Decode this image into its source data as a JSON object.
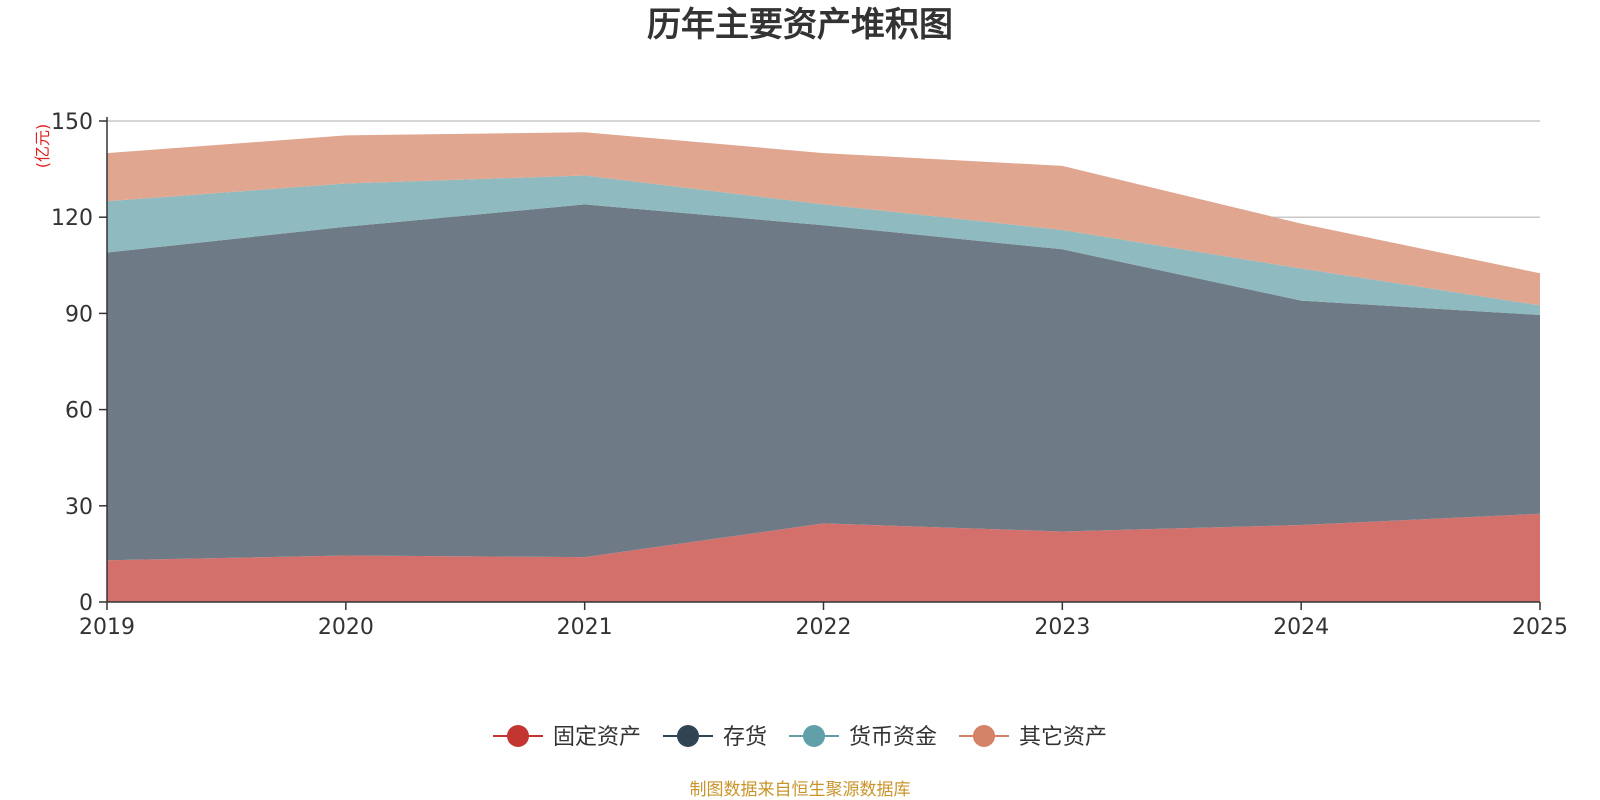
{
  "chart_data": {
    "type": "area",
    "stacked": true,
    "title": "历年主要资产堆积图",
    "ylabel": "(亿元)",
    "xlabel": "",
    "x": [
      "2019",
      "2020",
      "2021",
      "2022",
      "2023",
      "2024",
      "2025"
    ],
    "ylim": [
      0,
      150
    ],
    "yticks": [
      0,
      30,
      60,
      90,
      120,
      150
    ],
    "grid": true,
    "legend_position": "bottom-center",
    "series": [
      {
        "name": "固定资产",
        "color": "#c23531",
        "fill": "#d4706c",
        "values": [
          13,
          14.5,
          14,
          24.5,
          22,
          24,
          27.5
        ]
      },
      {
        "name": "存货",
        "color": "#2f4554",
        "fill": "#6e7b86",
        "values": [
          96,
          102.5,
          110,
          93,
          88,
          70,
          62
        ]
      },
      {
        "name": "货币资金",
        "color": "#61a0a8",
        "fill": "#8fbabf",
        "values": [
          16,
          13.5,
          9,
          6.5,
          6,
          10,
          3
        ]
      },
      {
        "name": "其它资产",
        "color": "#d48265",
        "fill": "#e0a690",
        "values": [
          15,
          15,
          13.5,
          16,
          20,
          14,
          10
        ]
      }
    ],
    "source": "制图数据来自恒生聚源数据库"
  }
}
